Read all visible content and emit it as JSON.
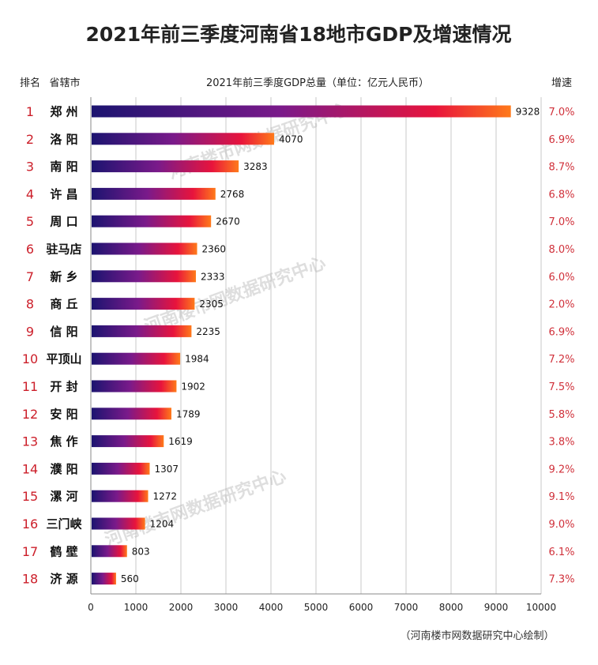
{
  "chart_data": {
    "type": "bar",
    "orientation": "horizontal",
    "title": "2021年前三季度河南省18地市GDP及增速情况",
    "columns": {
      "rank": "排名",
      "city": "省辖市",
      "value": "2021年前三季度GDP总量（单位：亿元人民币）",
      "growth": "增速"
    },
    "ranks": [
      "1",
      "2",
      "3",
      "4",
      "5",
      "6",
      "7",
      "8",
      "9",
      "10",
      "11",
      "12",
      "13",
      "14",
      "15",
      "16",
      "17",
      "18"
    ],
    "categories": [
      "郑 州",
      "洛 阳",
      "南 阳",
      "许 昌",
      "周 口",
      "驻马店",
      "新 乡",
      "商 丘",
      "信 阳",
      "平顶山",
      "开 封",
      "安 阳",
      "焦 作",
      "濮 阳",
      "漯 河",
      "三门峡",
      "鹤 壁",
      "济 源"
    ],
    "values": [
      9328,
      4070,
      3283,
      2768,
      2670,
      2360,
      2333,
      2305,
      2235,
      1984,
      1902,
      1789,
      1619,
      1307,
      1272,
      1204,
      803,
      560
    ],
    "growth": [
      "7.0%",
      "6.9%",
      "8.7%",
      "6.8%",
      "7.0%",
      "8.0%",
      "6.0%",
      "2.0%",
      "6.9%",
      "7.2%",
      "7.5%",
      "5.8%",
      "3.8%",
      "9.2%",
      "9.1%",
      "9.0%",
      "6.1%",
      "7.3%"
    ],
    "xlim": [
      0,
      10000
    ],
    "xticks": [
      0,
      1000,
      2000,
      3000,
      4000,
      5000,
      6000,
      7000,
      8000,
      9000,
      10000
    ],
    "grid": true,
    "source": "（河南楼市网数据研究中心绘制）",
    "watermark": "河南楼市网数据研究中心",
    "colors": {
      "gradient": [
        "#1c1470",
        "#7a1a8a",
        "#e8143c",
        "#ff7a1a"
      ],
      "rank": "#cc1f2a",
      "growth": "#d0303a",
      "grid": "#c8c8c8"
    }
  }
}
